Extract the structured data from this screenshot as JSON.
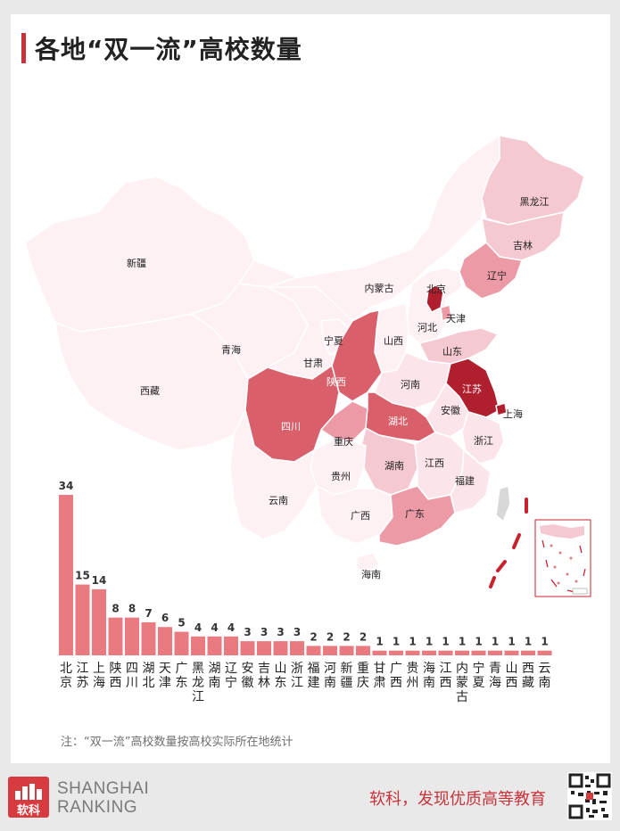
{
  "header": {
    "title": "各地“双一流”高校数量"
  },
  "map": {
    "labels": {
      "heilongjiang": "黑龙江",
      "jilin": "吉林",
      "liaoning": "辽宁",
      "beijing": "北京",
      "tianjin": "天津",
      "neimenggu": "内蒙古",
      "hebei": "河北",
      "shanxi": "山西",
      "shandong": "山东",
      "ningxia": "宁夏",
      "qinghai": "青海",
      "gansu": "甘肃",
      "shaanxi": "陕西",
      "henan": "河南",
      "jiangsu": "江苏",
      "shanghai": "上海",
      "anhui": "安徽",
      "xizang": "西藏",
      "xinjiang": "新疆",
      "sichuan": "四川",
      "hubei": "湖北",
      "chongqing": "重庆",
      "zhejiang": "浙江",
      "hunan": "湖南",
      "jiangxi": "江西",
      "guizhou": "贵州",
      "fujian": "福建",
      "yunnan": "云南",
      "guangxi": "广西",
      "guangdong": "广东",
      "hainan": "海南"
    },
    "colors": {
      "dark": "#b01f2e",
      "strong": "#d9606a",
      "mid": "#ec9aa5",
      "light": "#f5c9d1",
      "pale": "#fbe5ea",
      "faint": "#fdf1f4"
    }
  },
  "chart_data": {
    "type": "bar",
    "title": "各地“双一流”高校数量",
    "categories": [
      "北京",
      "江苏",
      "上海",
      "陕西",
      "四川",
      "湖北",
      "天津",
      "广东",
      "黑龙江",
      "湖南",
      "辽宁",
      "安徽",
      "吉林",
      "山东",
      "浙江",
      "福建",
      "河南",
      "新疆",
      "重庆",
      "甘肃",
      "广西",
      "贵州",
      "海南",
      "江西",
      "内蒙古",
      "宁夏",
      "青海",
      "山西",
      "西藏",
      "云南"
    ],
    "values": [
      34,
      15,
      14,
      8,
      8,
      7,
      6,
      5,
      4,
      4,
      4,
      3,
      3,
      3,
      3,
      2,
      2,
      2,
      2,
      1,
      1,
      1,
      1,
      1,
      1,
      1,
      1,
      1,
      1,
      1
    ],
    "bar_color": "#e87a80",
    "ylim": [
      0,
      34
    ]
  },
  "note": "注：“双一流”高校数量按高校实际所在地统计",
  "footer": {
    "logo_text": "软科",
    "brand_line1": "SHANGHAI",
    "brand_line2": "RANKING",
    "slogan": "软科，发现优质高等教育"
  }
}
